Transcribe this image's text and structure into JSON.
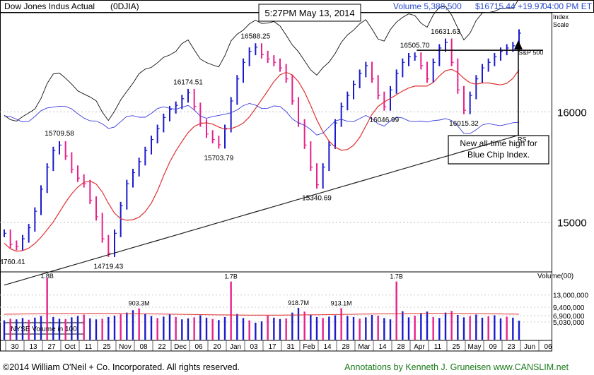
{
  "header": {
    "index_name": "Dow Jones Indus Actual",
    "symbol": "(0DJIA)",
    "timestamp": "5:27PM May 13, 2014",
    "volume": "Volume 5,388,500",
    "price_change": "$16715.44 +19.97",
    "time_et": "04:00 PM ET"
  },
  "scale_label": [
    "Index",
    "Scale"
  ],
  "callout": [
    "New all-time high for",
    "Blue Chip Index."
  ],
  "overlay_labels": {
    "sp500": "S&P 500",
    "rs": "RS"
  },
  "volume_box_label": "NYSE Volume in 100",
  "footer": {
    "copyright": "©2014 William O'Neil + Co. Incorporated. All rights reserved.",
    "annotation": "Annotations by Kenneth J. Gruneisen www.CANSLIM.net"
  },
  "colors": {
    "up": "#1a1acc",
    "down": "#e8208c",
    "ma50": "#e03030",
    "ma200": "#202020",
    "sp500": "#111111",
    "rs": "#3a3ae0",
    "footer_green": "#1a7a1a"
  },
  "chart_data": {
    "type": "line",
    "price_axis": {
      "ticks": [
        15000,
        16000
      ],
      "range": [
        14550,
        16900
      ]
    },
    "x_labels": [
      "30",
      "13",
      "27",
      "Oct",
      "11",
      "25",
      "Nov",
      "08",
      "22",
      "Dec",
      "06",
      "20",
      "Jan",
      "03",
      "17",
      "31",
      "Feb",
      "14",
      "28",
      "Mar",
      "14",
      "28",
      "Apr",
      "11",
      "25",
      "May",
      "09",
      "23",
      "Jun",
      "06"
    ],
    "price_annotations": [
      {
        "label": "14760.41",
        "value": 14760.41
      },
      {
        "label": "15709.58",
        "value": 15709.58
      },
      {
        "label": "14719.43",
        "value": 14719.43
      },
      {
        "label": "16174.51",
        "value": 16174.51
      },
      {
        "label": "15703.79",
        "value": 15703.79
      },
      {
        "label": "16588.25",
        "value": 16588.25
      },
      {
        "label": "15340.69",
        "value": 15340.69
      },
      {
        "label": "16505.70",
        "value": 16505.7
      },
      {
        "label": "16046.99",
        "value": 16046.99
      },
      {
        "label": "16631.63",
        "value": 16631.63
      },
      {
        "label": "16015.32",
        "value": 16015.32
      }
    ],
    "price_series": [
      14900,
      14800,
      14780,
      14850,
      14950,
      15100,
      15300,
      15500,
      15650,
      15700,
      15600,
      15480,
      15400,
      15350,
      15200,
      15050,
      14850,
      14720,
      14900,
      15150,
      15350,
      15450,
      15550,
      15650,
      15750,
      15850,
      15950,
      16020,
      16060,
      16120,
      16174,
      16050,
      15900,
      15800,
      15750,
      15703,
      15850,
      16100,
      16300,
      16450,
      16550,
      16588,
      16520,
      16480,
      16450,
      16400,
      16300,
      16100,
      15900,
      15700,
      15500,
      15340,
      15500,
      15700,
      15900,
      16050,
      16150,
      16250,
      16350,
      16420,
      16300,
      16150,
      16047,
      16200,
      16350,
      16450,
      16500,
      16505,
      16420,
      16300,
      16450,
      16580,
      16631,
      16450,
      16200,
      16015,
      16150,
      16300,
      16400,
      16450,
      16500,
      16550,
      16580,
      16600,
      16715
    ],
    "volume_series": {
      "axis_label": "Volume(00)",
      "ticks": [
        "13,000,000",
        "9,400,000",
        "6,900,000",
        "5,030,000"
      ],
      "annotations": [
        {
          "label": "1.8B",
          "value": 18000000
        },
        {
          "label": "903.3M",
          "value": 9033000
        },
        {
          "label": "1.7B",
          "value": 17000000
        },
        {
          "label": "918.7M",
          "value": 9187000
        },
        {
          "label": "913.1M",
          "value": 9131000
        },
        {
          "label": "1.7B",
          "value": 17000000
        }
      ],
      "values": [
        5.5,
        6,
        5.8,
        6.2,
        5.7,
        6.3,
        6.8,
        18,
        6.5,
        6,
        5.9,
        6.4,
        6.8,
        7.2,
        6.1,
        5.8,
        6,
        6.5,
        6.9,
        7.3,
        7.8,
        8.5,
        9.033,
        7.5,
        6.8,
        6.2,
        6.6,
        7.3,
        6.5,
        5.8,
        6.1,
        6.4,
        7,
        6.3,
        5.9,
        5.6,
        6.5,
        17,
        7.4,
        6.2,
        5.5,
        4.8,
        5.2,
        6.9,
        6.3,
        5.9,
        6.1,
        7.8,
        9.187,
        8.1,
        7.2,
        6.5,
        6.2,
        6.6,
        7,
        9.131,
        6.8,
        6.5,
        6,
        6.4,
        7.1,
        6.9,
        6.2,
        5.8,
        17,
        8.2,
        6.4,
        6.9,
        7.6,
        8.1,
        6.5,
        6.2,
        7.8,
        8.3,
        7.1,
        6.4,
        6.8,
        7.2,
        6.3,
        6.7,
        7,
        6.1,
        6.6,
        6.3,
        5.4
      ]
    }
  }
}
